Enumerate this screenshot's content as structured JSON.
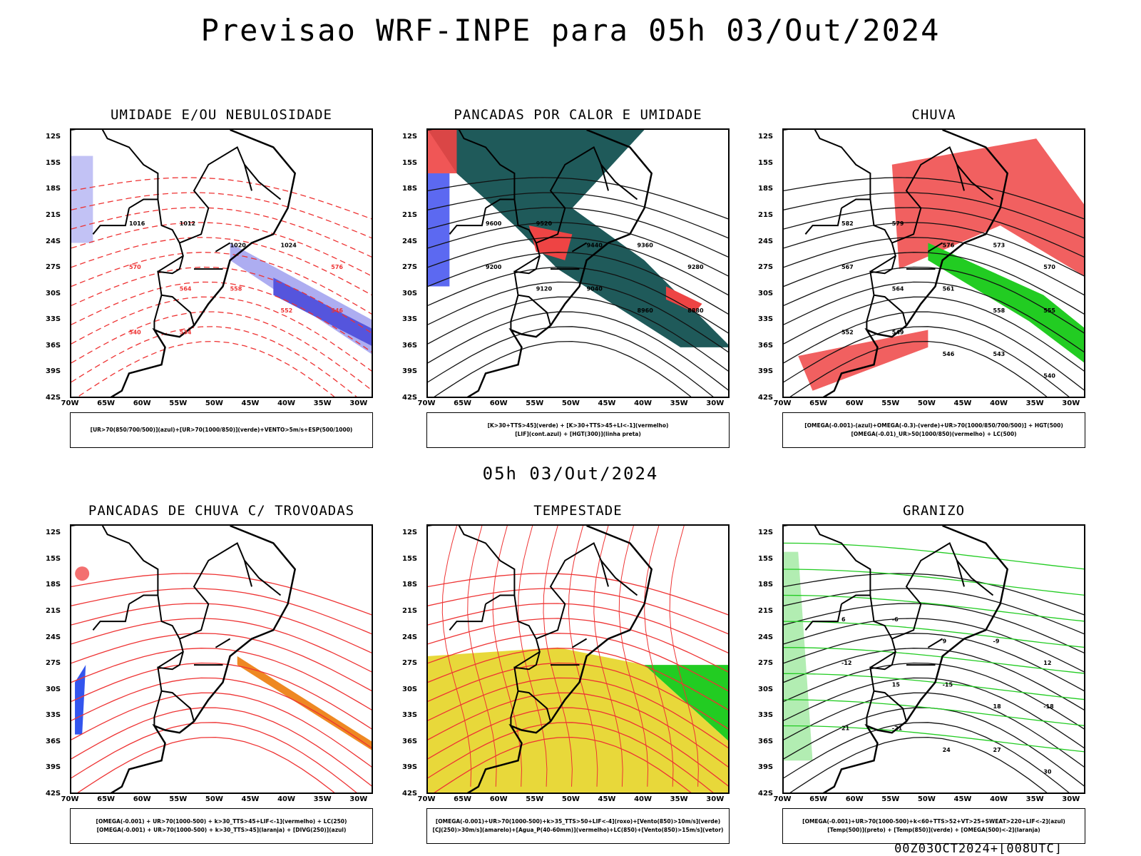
{
  "main_title": "Previsao WRF-INPE  para 05h 03/Out/2024",
  "middle_title": "05h 03/Out/2024",
  "timestamp": "00Z03OCT2024+[008UTC]",
  "axes": {
    "y_labels": [
      "12S",
      "15S",
      "18S",
      "21S",
      "24S",
      "27S",
      "30S",
      "33S",
      "36S",
      "39S",
      "42S"
    ],
    "x_labels": [
      "70W",
      "65W",
      "60W",
      "55W",
      "50W",
      "45W",
      "40W",
      "35W",
      "30W"
    ]
  },
  "panels": [
    {
      "title": "UMIDADE E/OU NEBULOSIDADE",
      "legend": [
        "[UR>70(850/700/500)](azul)+[UR>70(1000/850)](verde)+VENTO>5m/s+ESP(500/1000)"
      ],
      "fill_colors": [
        "#f0f0ff",
        "#9999ee",
        "#5555dd"
      ],
      "contour_labels": [
        "1016",
        "1012",
        "1020",
        "1024",
        "576",
        "570",
        "564",
        "558",
        "552",
        "546",
        "540",
        "534"
      ]
    },
    {
      "title": "PANCADAS POR CALOR E UMIDADE",
      "legend": [
        "[K>30+TTS>45](verde) + [K>30+TTS>45+LI<-1](vermelho)",
        "[LIF](cont.azul) + [HGT(300)](linha preta)"
      ],
      "fill_colors": [
        "#1f5a5a",
        "#ee4444",
        "#3344ee"
      ],
      "contour_labels": [
        "9600",
        "9520",
        "9440",
        "9360",
        "9280",
        "9200",
        "9120",
        "9040",
        "8960",
        "8880"
      ]
    },
    {
      "title": "CHUVA",
      "legend": [
        "[OMEGA(-0.001)-(azul)+OMEGA(-0.3)-(verde)+UR>70(1000/850/700/500)] + HGT(500)",
        "[OMEGA(-0.01)_UR>50(1000/850)(vermelho) + LC(500)"
      ],
      "fill_colors": [
        "#ee4444",
        "#2244ee",
        "#22cc22"
      ],
      "contour_labels": [
        "582",
        "579",
        "576",
        "573",
        "570",
        "567",
        "564",
        "561",
        "558",
        "555",
        "552",
        "549",
        "546",
        "543",
        "540"
      ]
    },
    {
      "title": "PANCADAS DE CHUVA C/ TROVOADAS",
      "legend": [
        "[OMEGA(-0.001) + UR>70(1000-500) + k>30_TTS>45+LIF<-1](vermelho) + LC(250)",
        "[OMEGA(-0.001) + UR>70(1000-500) + k>30_TTS>45](laranja) + [DIVG(250)](azul)"
      ],
      "fill_colors": [
        "#ee3333",
        "#ee8822",
        "#3355ee"
      ],
      "contour_labels": []
    },
    {
      "title": "TEMPESTADE",
      "legend": [
        "[OMEGA(-0.001)+UR>70(1000-500)+k>35_TTS>50+LIF<-4](roxo)+[Vento(850)>10m/s](verde)",
        "[CJ(250)>30m/s](amarelo)+[Agua_P(40-60mm)](vermelho)+LC(850)+[Vento(850)>15m/s](vetor)"
      ],
      "fill_colors": [
        "#e8d83a",
        "#22cc22",
        "#ee4444"
      ],
      "contour_labels": []
    },
    {
      "title": "GRANIZO",
      "legend": [
        "[OMEGA(-0.001)+UR>70(1000-500)+k<60+TTS>52+VT>25+SWEAT>220+LIF<-2](azul)",
        "[Temp(500)](preto) + [Temp(850)](verde) + [OMEGA(500)<-2](laranja)"
      ],
      "fill_colors": [
        "#22cc22",
        "#ee8822",
        "#3355ee"
      ],
      "contour_labels": [
        "6",
        "-6",
        "9",
        "-9",
        "12",
        "-12",
        "15",
        "-15",
        "18",
        "-18",
        "21",
        "-21",
        "24",
        "27",
        "30"
      ]
    }
  ]
}
